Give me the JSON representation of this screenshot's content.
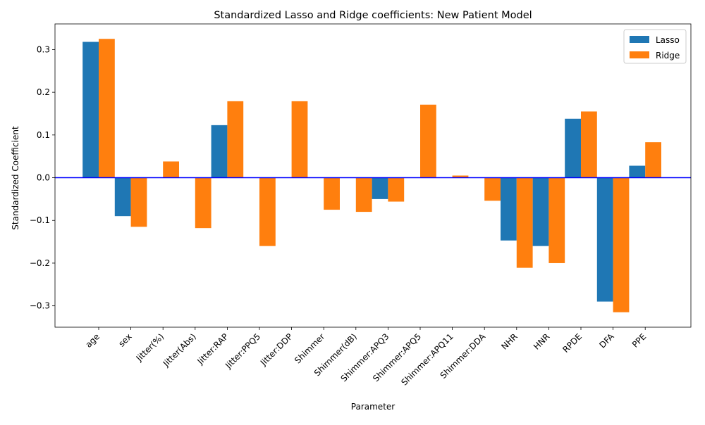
{
  "chart_data": {
    "type": "bar",
    "title": "Standardized Lasso and Ridge coefficients: New Patient Model",
    "xlabel": "Parameter",
    "ylabel": "Standardized Coefficient",
    "ylim": [
      -0.35,
      0.36
    ],
    "yticks": [
      -0.3,
      -0.2,
      -0.1,
      0.0,
      0.1,
      0.2,
      0.3
    ],
    "ytick_labels": [
      "−0.3",
      "−0.2",
      "−0.1",
      "0.0",
      "0.1",
      "0.2",
      "0.3"
    ],
    "grid": false,
    "legend_position": "top-right",
    "zero_line_color": "#0000ff",
    "categories": [
      "age",
      "sex",
      "Jitter(%)",
      "Jitter(Abs)",
      "Jitter:RAP",
      "Jitter:PPQ5",
      "Jitter:DDP",
      "Shimmer",
      "Shimmer(dB)",
      "Shimmer:APQ3",
      "Shimmer:APQ5",
      "Shimmer:APQ11",
      "Shimmer:DDA",
      "NHR",
      "HNR",
      "RPDE",
      "DFA",
      "PPE"
    ],
    "series": [
      {
        "name": "Lasso",
        "color": "#1f77b4",
        "values": [
          0.318,
          -0.09,
          0.0,
          0.0,
          0.123,
          0.0,
          0.0,
          0.0,
          0.0,
          -0.05,
          0.0,
          0.0,
          0.0,
          -0.147,
          -0.16,
          0.138,
          -0.29,
          0.028
        ]
      },
      {
        "name": "Ridge",
        "color": "#ff7f0e",
        "values": [
          0.325,
          -0.115,
          0.038,
          -0.118,
          0.179,
          -0.16,
          0.179,
          -0.075,
          -0.08,
          -0.056,
          0.171,
          0.005,
          -0.054,
          -0.211,
          -0.2,
          0.155,
          -0.315,
          0.083
        ]
      }
    ]
  }
}
